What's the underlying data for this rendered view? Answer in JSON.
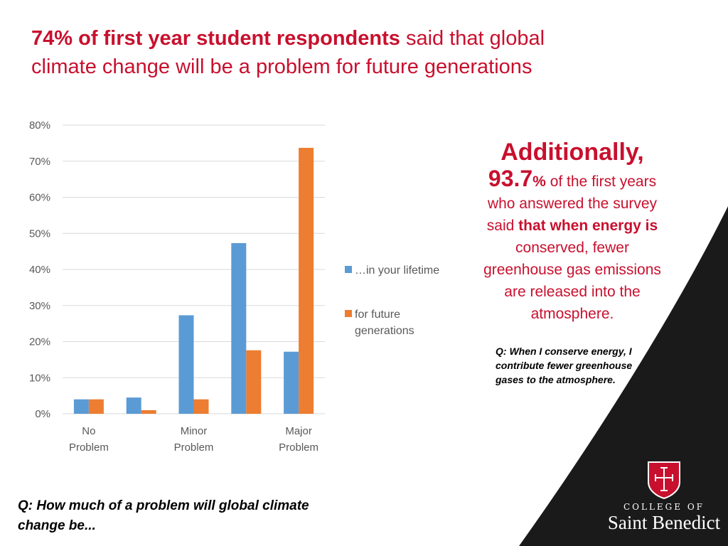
{
  "title": {
    "bold_part": "74% of first year student respondents",
    "rest_part": " said that global climate change will be a problem for future generations"
  },
  "side_note": {
    "heading": "Additionally,",
    "big_number": "93.7",
    "pct_sign": "%",
    "line1_rest": " of the first years",
    "line2": "who answered the survey",
    "line3_plain": "said ",
    "line3_bold": "that when energy is",
    "line4": "conserved, fewer",
    "line5": "greenhouse gas emissions",
    "line6": "are released into the",
    "line7": "atmosphere.",
    "question": "Q: When I conserve energy, I contribute fewer greenhouse gases to the atmosphere."
  },
  "bottom_question": "Q: How much of a problem will global climate change be...",
  "logo": {
    "college": "COLLEGE OF",
    "name": "Saint Benedict"
  },
  "colors": {
    "accent_red": "#c8102e",
    "series_blue": "#5b9bd5",
    "series_orange": "#ed7d31",
    "corner_dark": "#1a1a1a"
  },
  "chart_data": {
    "type": "bar",
    "categories": [
      "No Problem",
      "",
      "Minor Problem",
      "",
      "Major Problem"
    ],
    "category_label_lines": [
      [
        "No",
        "Problem"
      ],
      [],
      [
        "Minor",
        "Problem"
      ],
      [],
      [
        "Major",
        "Problem"
      ]
    ],
    "series": [
      {
        "name": "…in your lifetime",
        "values": [
          4,
          4.5,
          27.3,
          47.3,
          17.2
        ],
        "color": "#5b9bd5"
      },
      {
        "name": "for future generations",
        "name_lines": [
          "for future",
          "generations"
        ],
        "values": [
          4,
          1,
          4,
          17.6,
          73.7
        ],
        "color": "#ed7d31"
      }
    ],
    "y_ticks": [
      "0%",
      "10%",
      "20%",
      "30%",
      "40%",
      "50%",
      "60%",
      "70%",
      "80%"
    ],
    "ylim": [
      0,
      80
    ],
    "grid": true,
    "legend_position": "right"
  }
}
